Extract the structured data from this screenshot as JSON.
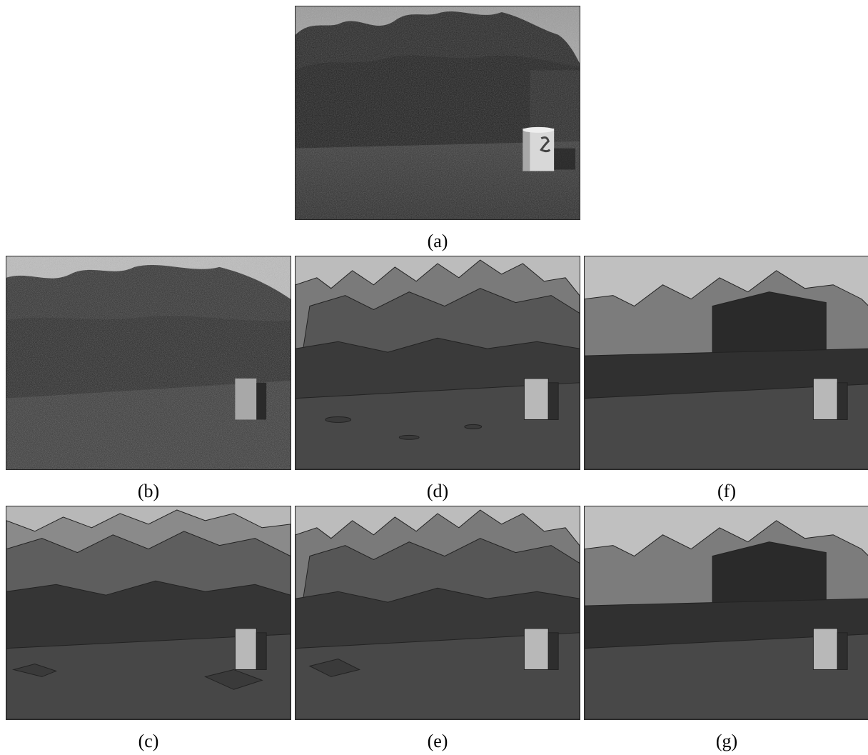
{
  "figure": {
    "panels": [
      {
        "id": "a",
        "caption": "(a)",
        "kind": "photo"
      },
      {
        "id": "b",
        "caption": "(b)",
        "kind": "superpixels"
      },
      {
        "id": "d",
        "caption": "(d)",
        "kind": "segmentation-medium"
      },
      {
        "id": "f",
        "caption": "(f)",
        "kind": "segmentation-coarse"
      },
      {
        "id": "c",
        "caption": "(c)",
        "kind": "segmentation-fine"
      },
      {
        "id": "e",
        "caption": "(e)",
        "kind": "segmentation-medium"
      },
      {
        "id": "g",
        "caption": "(g)",
        "kind": "segmentation-coarse"
      }
    ]
  }
}
